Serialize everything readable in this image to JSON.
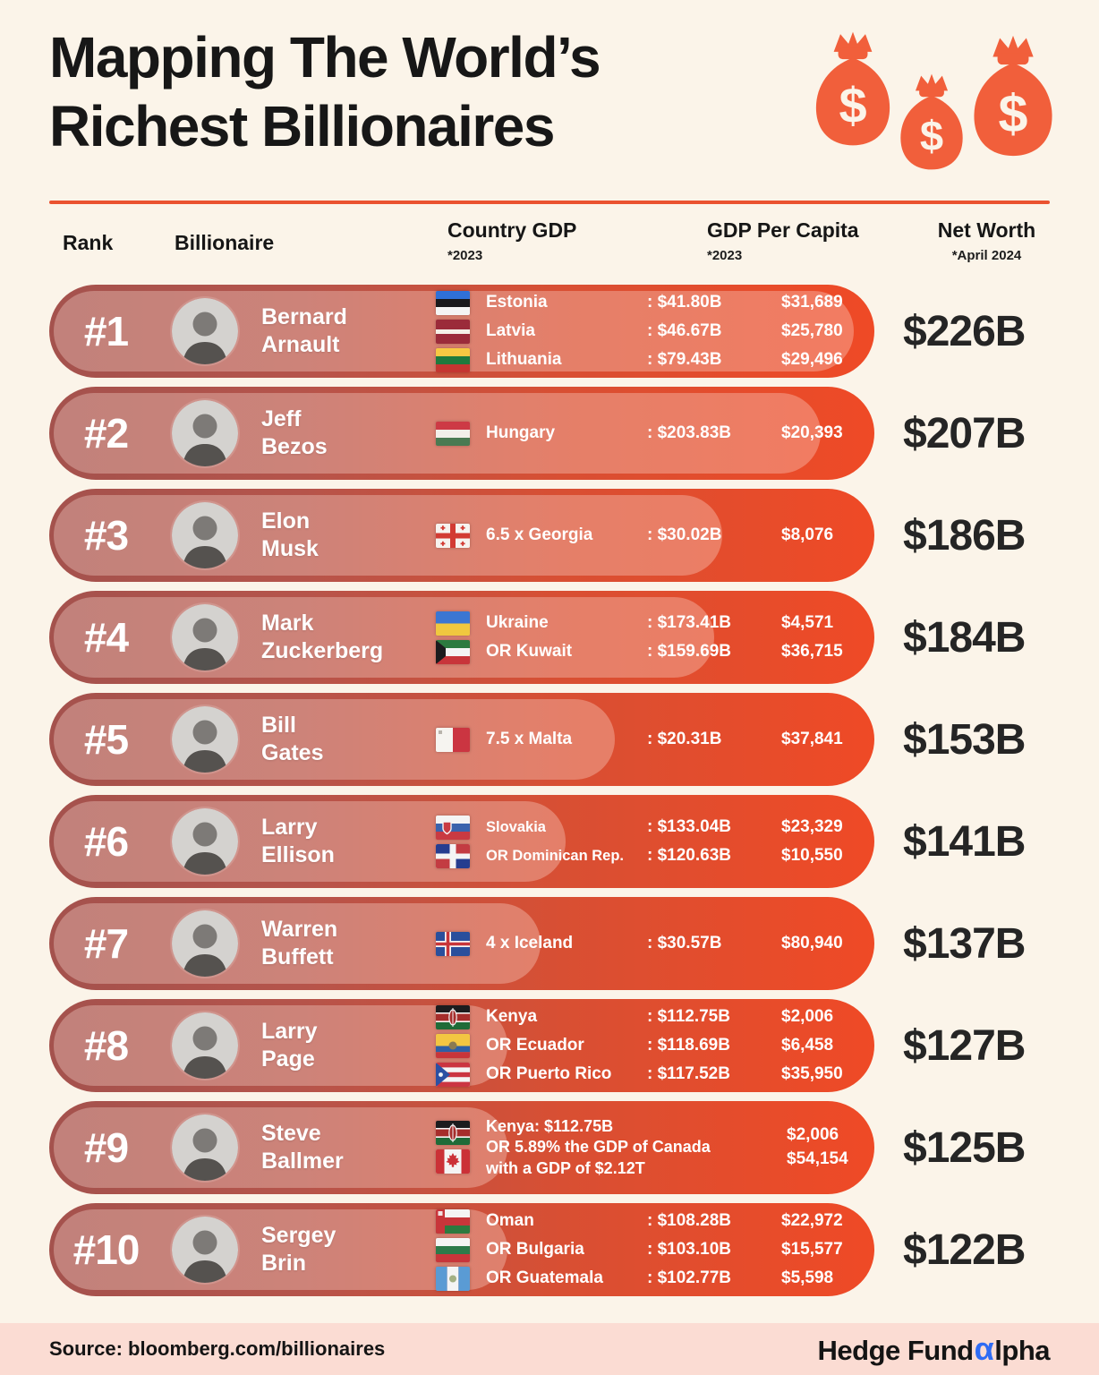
{
  "header": {
    "title_line1": "Mapping The World’s",
    "title_line2": "Richest Billionaires"
  },
  "columns": {
    "rank": "Rank",
    "billionaire": "Billionaire",
    "country_gdp": "Country GDP",
    "country_gdp_note": "*2023",
    "gdp_per_capita": "GDP Per Capita",
    "gdp_per_capita_note": "*2023",
    "net_worth": "Net Worth",
    "net_worth_note": "*April 2024"
  },
  "rows": [
    {
      "rank": "#1",
      "first": "Bernard",
      "last": "Arnault",
      "net_worth": "$226B",
      "countries": [
        {
          "flag": "estonia",
          "label": "Estonia",
          "gdp": ": $41.80B",
          "capita": "$31,689"
        },
        {
          "flag": "latvia",
          "label": "Latvia",
          "gdp": ": $46.67B",
          "capita": "$25,780"
        },
        {
          "flag": "lithuania",
          "label": "Lithuania",
          "gdp": ": $79.43B",
          "capita": "$29,496"
        }
      ]
    },
    {
      "rank": "#2",
      "first": "Jeff",
      "last": "Bezos",
      "net_worth": "$207B",
      "countries": [
        {
          "flag": "hungary",
          "label": "Hungary",
          "gdp": ": $203.83B",
          "capita": "$20,393"
        }
      ]
    },
    {
      "rank": "#3",
      "first": "Elon",
      "last": "Musk",
      "net_worth": "$186B",
      "countries": [
        {
          "flag": "georgia",
          "label": "6.5 x Georgia",
          "gdp": ": $30.02B",
          "capita": "$8,076"
        }
      ]
    },
    {
      "rank": "#4",
      "first": "Mark",
      "last": "Zuckerberg",
      "net_worth": "$184B",
      "countries": [
        {
          "flag": "ukraine",
          "label": "Ukraine",
          "gdp": ": $173.41B",
          "capita": "$4,571"
        },
        {
          "flag": "kuwait",
          "label": "OR Kuwait",
          "gdp": ": $159.69B",
          "capita": "$36,715"
        }
      ]
    },
    {
      "rank": "#5",
      "first": "Bill",
      "last": "Gates",
      "net_worth": "$153B",
      "countries": [
        {
          "flag": "malta",
          "label": "7.5 x Malta",
          "gdp": ": $20.31B",
          "capita": "$37,841"
        }
      ]
    },
    {
      "rank": "#6",
      "first": "Larry",
      "last": "Ellison",
      "net_worth": "$141B",
      "countries": [
        {
          "flag": "slovakia",
          "label": "Slovakia",
          "gdp": ": $133.04B",
          "capita": "$23,329"
        },
        {
          "flag": "dominican-republic",
          "label": "OR Dominican Rep.",
          "gdp": ": $120.63B",
          "capita": "$10,550"
        }
      ]
    },
    {
      "rank": "#7",
      "first": "Warren",
      "last": "Buffett",
      "net_worth": "$137B",
      "countries": [
        {
          "flag": "iceland",
          "label": "4 x Iceland",
          "gdp": ": $30.57B",
          "capita": "$80,940"
        }
      ]
    },
    {
      "rank": "#8",
      "first": "Larry",
      "last": "Page",
      "net_worth": "$127B",
      "countries": [
        {
          "flag": "kenya",
          "label": "Kenya",
          "gdp": ": $112.75B",
          "capita": "$2,006"
        },
        {
          "flag": "ecuador",
          "label": "OR Ecuador",
          "gdp": ": $118.69B",
          "capita": "$6,458"
        },
        {
          "flag": "puerto-rico",
          "label": "OR Puerto Rico",
          "gdp": ": $117.52B",
          "capita": "$35,950"
        }
      ]
    },
    {
      "rank": "#9",
      "first": "Steve",
      "last": "Ballmer",
      "net_worth": "$125B",
      "flags": [
        "kenya",
        "canada"
      ],
      "gdp_lines": [
        "Kenya: $112.75B",
        "OR 5.89% the GDP of Canada",
        "with a GDP of $2.12T"
      ],
      "capita_lines": [
        "$2,006",
        "$54,154"
      ]
    },
    {
      "rank": "#10",
      "first": "Sergey",
      "last": "Brin",
      "net_worth": "$122B",
      "countries": [
        {
          "flag": "oman",
          "label": "Oman",
          "gdp": ": $108.28B",
          "capita": "$22,972"
        },
        {
          "flag": "bulgaria",
          "label": "OR Bulgaria",
          "gdp": ": $103.10B",
          "capita": "$15,577"
        },
        {
          "flag": "guatemala",
          "label": "OR Guatemala",
          "gdp": ": $102.77B",
          "capita": "$5,598"
        }
      ]
    }
  ],
  "footer": {
    "source": "Source: bloomberg.com/billionaires",
    "brand_prefix": "Hedge Fund",
    "brand_alpha": "α",
    "brand_suffix": "lpha"
  },
  "icons": {
    "money_bag": "money-bag-icon",
    "avatar": "person-portrait-icon"
  },
  "colors": {
    "background": "#fbf4e9",
    "accent_orange": "#f15f3b",
    "divider": "#ea5230",
    "pill_dark": "#a4524d",
    "pill_bright": "#ef4a26",
    "footer_bg": "#fbdcd3",
    "text_dark": "#171717",
    "net_worth_text": "#252525",
    "alpha_blue": "#2f6cf4",
    "row_text": "#ffffff"
  }
}
